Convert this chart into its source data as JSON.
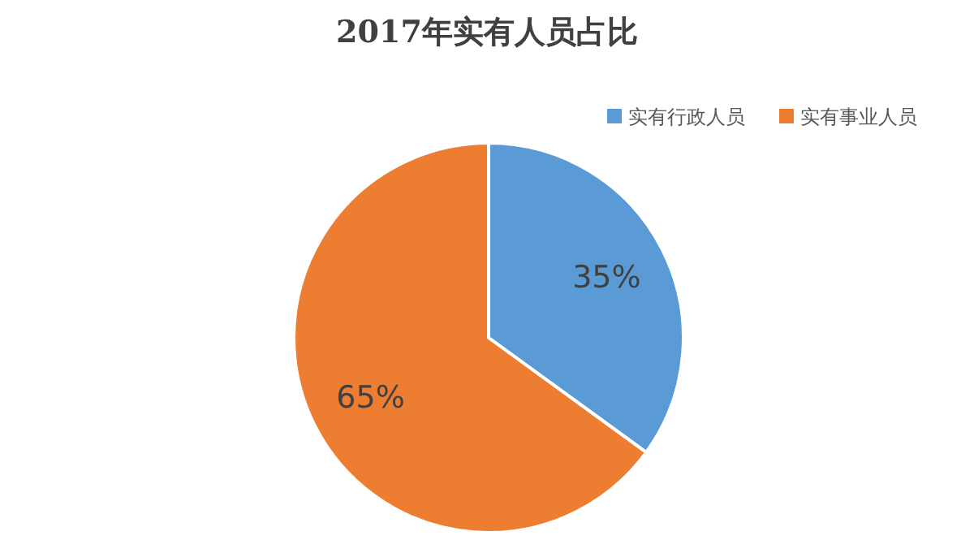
{
  "chart_data": {
    "type": "pie",
    "title": "2017年实有人员占比",
    "categories": [
      "实有行政人员",
      "实有事业人员"
    ],
    "values": [
      35,
      65
    ],
    "colors": [
      "#5b9bd5",
      "#ed7d31"
    ],
    "value_labels": [
      "35%",
      "65%"
    ],
    "legend": "top right"
  }
}
